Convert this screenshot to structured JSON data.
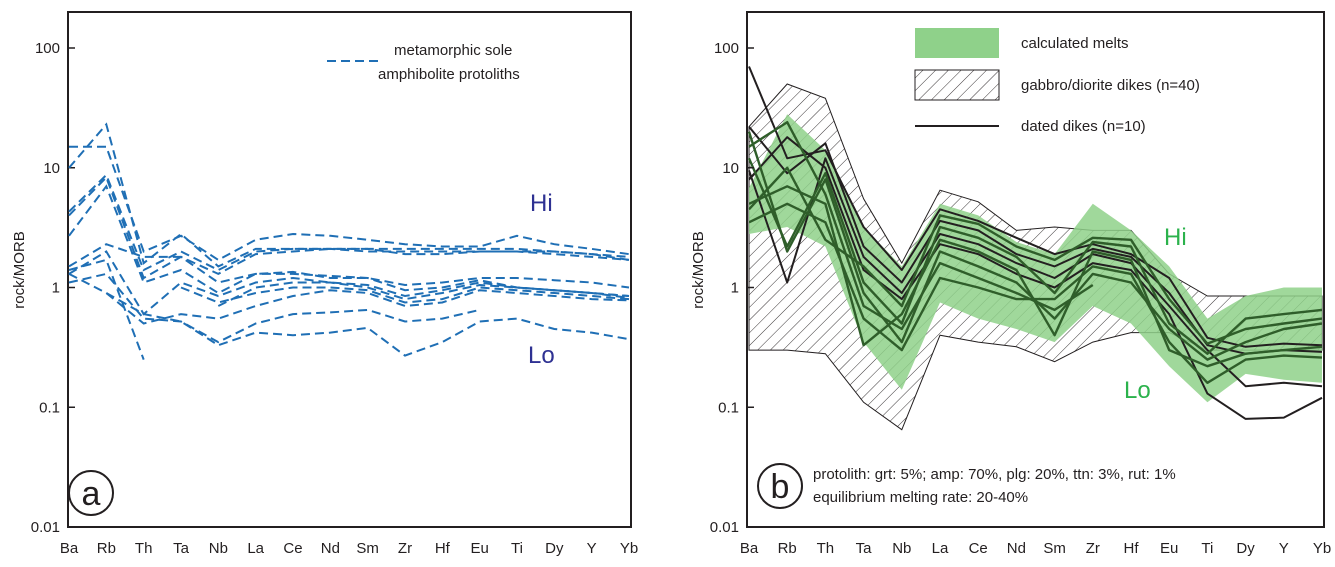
{
  "panels": [
    {
      "letter": "a",
      "ylabel": "rock/MORB",
      "hi_label": "Hi",
      "lo_label": "Lo",
      "legend": [
        {
          "label_line1": "metamorphic sole",
          "label_line2": "amphibolite protoliths",
          "style": "dashed",
          "color": "#1f6fb5"
        }
      ]
    },
    {
      "letter": "b",
      "ylabel": "rock/MORB",
      "hi_label": "Hi",
      "lo_label": "Lo",
      "legend": [
        {
          "label": "calculated melts",
          "style": "fill",
          "color": "#8fd18a"
        },
        {
          "label": "gabbro/diorite dikes (n=40)",
          "style": "hatch",
          "color": "#231f20"
        },
        {
          "label": "dated dikes (n=10)",
          "style": "solid",
          "color": "#231f20"
        }
      ],
      "note_line1": "protolith: grt: 5%; amp: 70%, plg: 20%, ttn: 3%, rut: 1%",
      "note_line2": "equilibrium melting rate: 20-40%"
    }
  ],
  "chart_data": [
    {
      "type": "line",
      "yscale": "log",
      "ylim": [
        0.01,
        100
      ],
      "ylabel": "rock/MORB",
      "yticks": [
        "0.01",
        "0.1",
        "1",
        "10",
        "100"
      ],
      "categories": [
        "Ba",
        "Rb",
        "Th",
        "Ta",
        "Nb",
        "La",
        "Ce",
        "Nd",
        "Sm",
        "Zr",
        "Hf",
        "Eu",
        "Ti",
        "Dy",
        "Y",
        "Yb"
      ],
      "series": [
        {
          "values": [
            15,
            15,
            2.0,
            2.7,
            1.7,
            2.5,
            2.8,
            2.7,
            2.5,
            2.3,
            2.2,
            2.2,
            2.7,
            2.3,
            2.1,
            1.9
          ]
        },
        {
          "values": [
            10,
            23,
            1.6,
            2.8,
            1.5,
            2.1,
            2.1,
            2.1,
            2.1,
            2.1,
            2.1,
            2.1,
            2.1,
            2.0,
            1.9,
            1.8
          ]
        },
        {
          "values": [
            4.3,
            8.7,
            1.4,
            2.0,
            1.4,
            2.0,
            2.1,
            2.1,
            2.0,
            2.0,
            2.0,
            2.0,
            2.0,
            2.0,
            1.9,
            1.7
          ]
        },
        {
          "values": [
            4.0,
            8.3,
            1.2,
            1.8,
            1.3,
            1.9,
            2.0,
            2.1,
            2.1,
            1.9,
            1.9,
            2.0,
            2.0,
            1.9,
            1.8,
            1.7
          ]
        },
        {
          "values": [
            2.7,
            7.0,
            1.1,
            1.4,
            0.9,
            1.3,
            1.35,
            1.2,
            1.2,
            1.05,
            1.1,
            1.2,
            1.2,
            1.15,
            1.1,
            1.0
          ]
        },
        {
          "values": [
            1.5,
            2.3,
            1.8,
            1.8,
            1.1,
            1.3,
            1.3,
            1.25,
            1.2,
            0.95,
            1.0,
            1.15,
            1.0,
            0.95,
            0.9,
            0.85
          ]
        },
        {
          "values": [
            1.3,
            2.0,
            0.6,
            1.1,
            0.85,
            1.1,
            1.2,
            1.1,
            1.05,
            0.85,
            0.95,
            1.1,
            1.0,
            0.95,
            0.9,
            0.85
          ]
        },
        {
          "values": [
            1.4,
            1.7,
            0.25,
            null,
            0.7,
            1.0,
            1.1,
            1.1,
            1.0,
            0.8,
            0.9,
            1.05,
            1.0,
            0.95,
            0.9,
            0.82
          ]
        },
        {
          "values": [
            null,
            null,
            null,
            1.0,
            0.75,
            0.9,
            1.0,
            1.0,
            0.95,
            0.75,
            0.8,
            1.0,
            0.95,
            0.9,
            0.85,
            0.8
          ]
        },
        {
          "values": [
            1.3,
            0.9,
            0.5,
            0.6,
            0.55,
            0.7,
            0.85,
            0.95,
            0.9,
            0.7,
            0.75,
            0.95,
            0.9,
            0.85,
            0.8,
            0.78
          ]
        },
        {
          "values": [
            1.1,
            1.3,
            0.55,
            0.52,
            0.35,
            0.5,
            0.6,
            0.62,
            0.65,
            0.52,
            0.55,
            0.65,
            null,
            null,
            null,
            null
          ]
        },
        {
          "values": [
            null,
            0.9,
            0.6,
            0.52,
            0.33,
            0.42,
            0.4,
            0.42,
            0.46,
            0.27,
            0.35,
            0.52,
            0.55,
            0.45,
            0.42,
            0.37
          ]
        }
      ]
    },
    {
      "type": "line",
      "yscale": "log",
      "ylim": [
        0.01,
        100
      ],
      "ylabel": "rock/MORB",
      "yticks": [
        "0.01",
        "0.1",
        "1",
        "10",
        "100"
      ],
      "categories": [
        "Ba",
        "Rb",
        "Th",
        "Ta",
        "Nb",
        "La",
        "Ce",
        "Nd",
        "Sm",
        "Zr",
        "Hf",
        "Eu",
        "Ti",
        "Dy",
        "Y",
        "Yb"
      ],
      "calculated_melts_band": {
        "upper": [
          6.8,
          28,
          14,
          3.2,
          1.5,
          5.0,
          4.0,
          2.4,
          1.9,
          5.0,
          3.0,
          1.5,
          0.55,
          0.85,
          1.0,
          1.0
        ],
        "lower": [
          2.8,
          3.2,
          2.2,
          0.35,
          0.14,
          0.75,
          0.55,
          0.45,
          0.35,
          0.7,
          0.5,
          0.22,
          0.11,
          0.19,
          0.17,
          0.16
        ]
      },
      "gabbro_diorite_envelope": {
        "upper": [
          22,
          50,
          38,
          5.5,
          1.6,
          6.5,
          5.2,
          3.0,
          3.2,
          3.0,
          3.0,
          1.3,
          0.85,
          0.85,
          0.85,
          0.85
        ],
        "lower": [
          0.3,
          0.3,
          0.28,
          0.11,
          0.065,
          0.4,
          0.35,
          0.32,
          0.24,
          0.35,
          0.42,
          0.42,
          0.3,
          0.3,
          0.3,
          0.3
        ]
      },
      "dated_dikes": [
        {
          "values": [
            70,
            12,
            14,
            3.2,
            1.4,
            4.5,
            3.6,
            2.6,
            1.9,
            2.3,
            1.9,
            1.2,
            0.38,
            0.32,
            0.34,
            0.33
          ]
        },
        {
          "values": [
            22,
            9,
            16,
            2.2,
            1.1,
            3.6,
            3.0,
            1.9,
            1.5,
            2.1,
            1.8,
            0.9,
            0.33,
            0.28,
            0.3,
            0.29
          ]
        },
        {
          "values": [
            9.5,
            1.1,
            12,
            1.8,
            0.9,
            2.8,
            2.3,
            1.6,
            1.2,
            1.9,
            1.6,
            0.7,
            0.3,
            0.15,
            0.16,
            0.15
          ]
        },
        {
          "values": [
            8.0,
            18,
            10,
            1.4,
            0.8,
            2.3,
            1.9,
            1.3,
            1.0,
            1.6,
            1.4,
            0.6,
            0.13,
            0.08,
            0.082,
            0.12
          ]
        },
        {
          "values": [
            12,
            2.2,
            9,
            1.1,
            0.5,
            3.2,
            2.6,
            1.8,
            0.9,
            2.4,
            2.2,
            0.5,
            0.28,
            0.55,
            0.6,
            0.65
          ]
        },
        {
          "values": [
            20,
            2.0,
            8,
            0.9,
            0.35,
            2.0,
            1.5,
            1.1,
            0.55,
            1.3,
            1.1,
            0.45,
            0.25,
            0.35,
            0.45,
            0.5
          ]
        },
        {
          "values": [
            15,
            24,
            6,
            0.7,
            0.45,
            1.6,
            1.2,
            0.9,
            0.65,
            1.05,
            null,
            null,
            null,
            null,
            null,
            null
          ]
        },
        {
          "values": [
            5.0,
            7,
            5,
            0.33,
            0.6,
            2.5,
            2.0,
            1.4,
            0.4,
            2.0,
            1.7,
            0.3,
            0.22,
            0.28,
            0.3,
            0.32
          ]
        },
        {
          "values": [
            3.5,
            5,
            3.5,
            0.55,
            0.3,
            1.2,
            1.0,
            0.8,
            0.8,
            1.5,
            1.3,
            0.35,
            0.16,
            0.25,
            0.27,
            0.26
          ]
        },
        {
          "values": [
            4.5,
            10,
            2.5,
            1.5,
            0.7,
            4.0,
            3.4,
            2.2,
            1.7,
            2.6,
            2.5,
            0.8,
            0.34,
            0.45,
            0.5,
            0.55
          ]
        }
      ]
    }
  ]
}
